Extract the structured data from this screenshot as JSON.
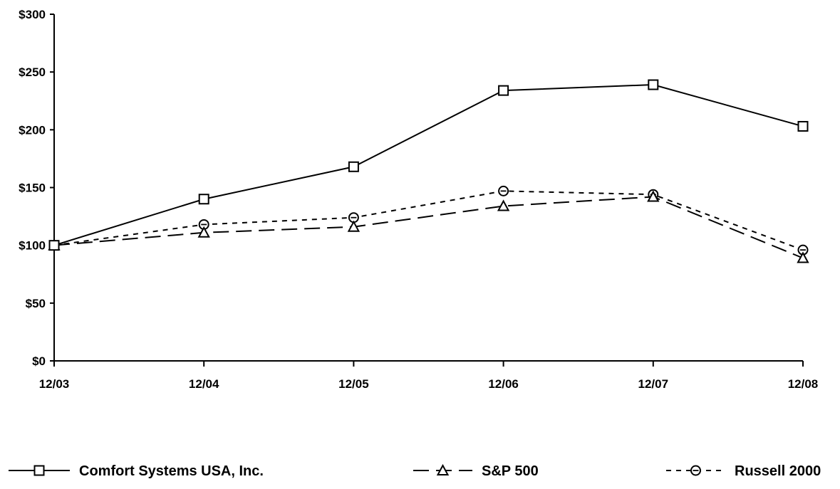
{
  "chart_data": {
    "type": "line",
    "title": "",
    "xlabel": "",
    "ylabel": "",
    "categories": [
      "12/03",
      "12/04",
      "12/05",
      "12/06",
      "12/07",
      "12/08"
    ],
    "y_ticks": [
      "$0",
      "$50",
      "$100",
      "$150",
      "$200",
      "$250",
      "$300"
    ],
    "ylim": [
      0,
      300
    ],
    "grid": false,
    "legend_position": "bottom",
    "series": [
      {
        "name": "Comfort Systems USA, Inc.",
        "values": [
          100,
          140,
          168,
          234,
          239,
          203
        ],
        "marker": "square",
        "line_style": "solid",
        "color": "#000000"
      },
      {
        "name": "S&P 500",
        "values": [
          100,
          111,
          116,
          134,
          142,
          89
        ],
        "marker": "triangle",
        "line_style": "long-dash",
        "color": "#000000"
      },
      {
        "name": "Russell 2000",
        "values": [
          100,
          118,
          124,
          147,
          144,
          96
        ],
        "marker": "circle",
        "line_style": "short-dash",
        "color": "#000000"
      }
    ]
  }
}
